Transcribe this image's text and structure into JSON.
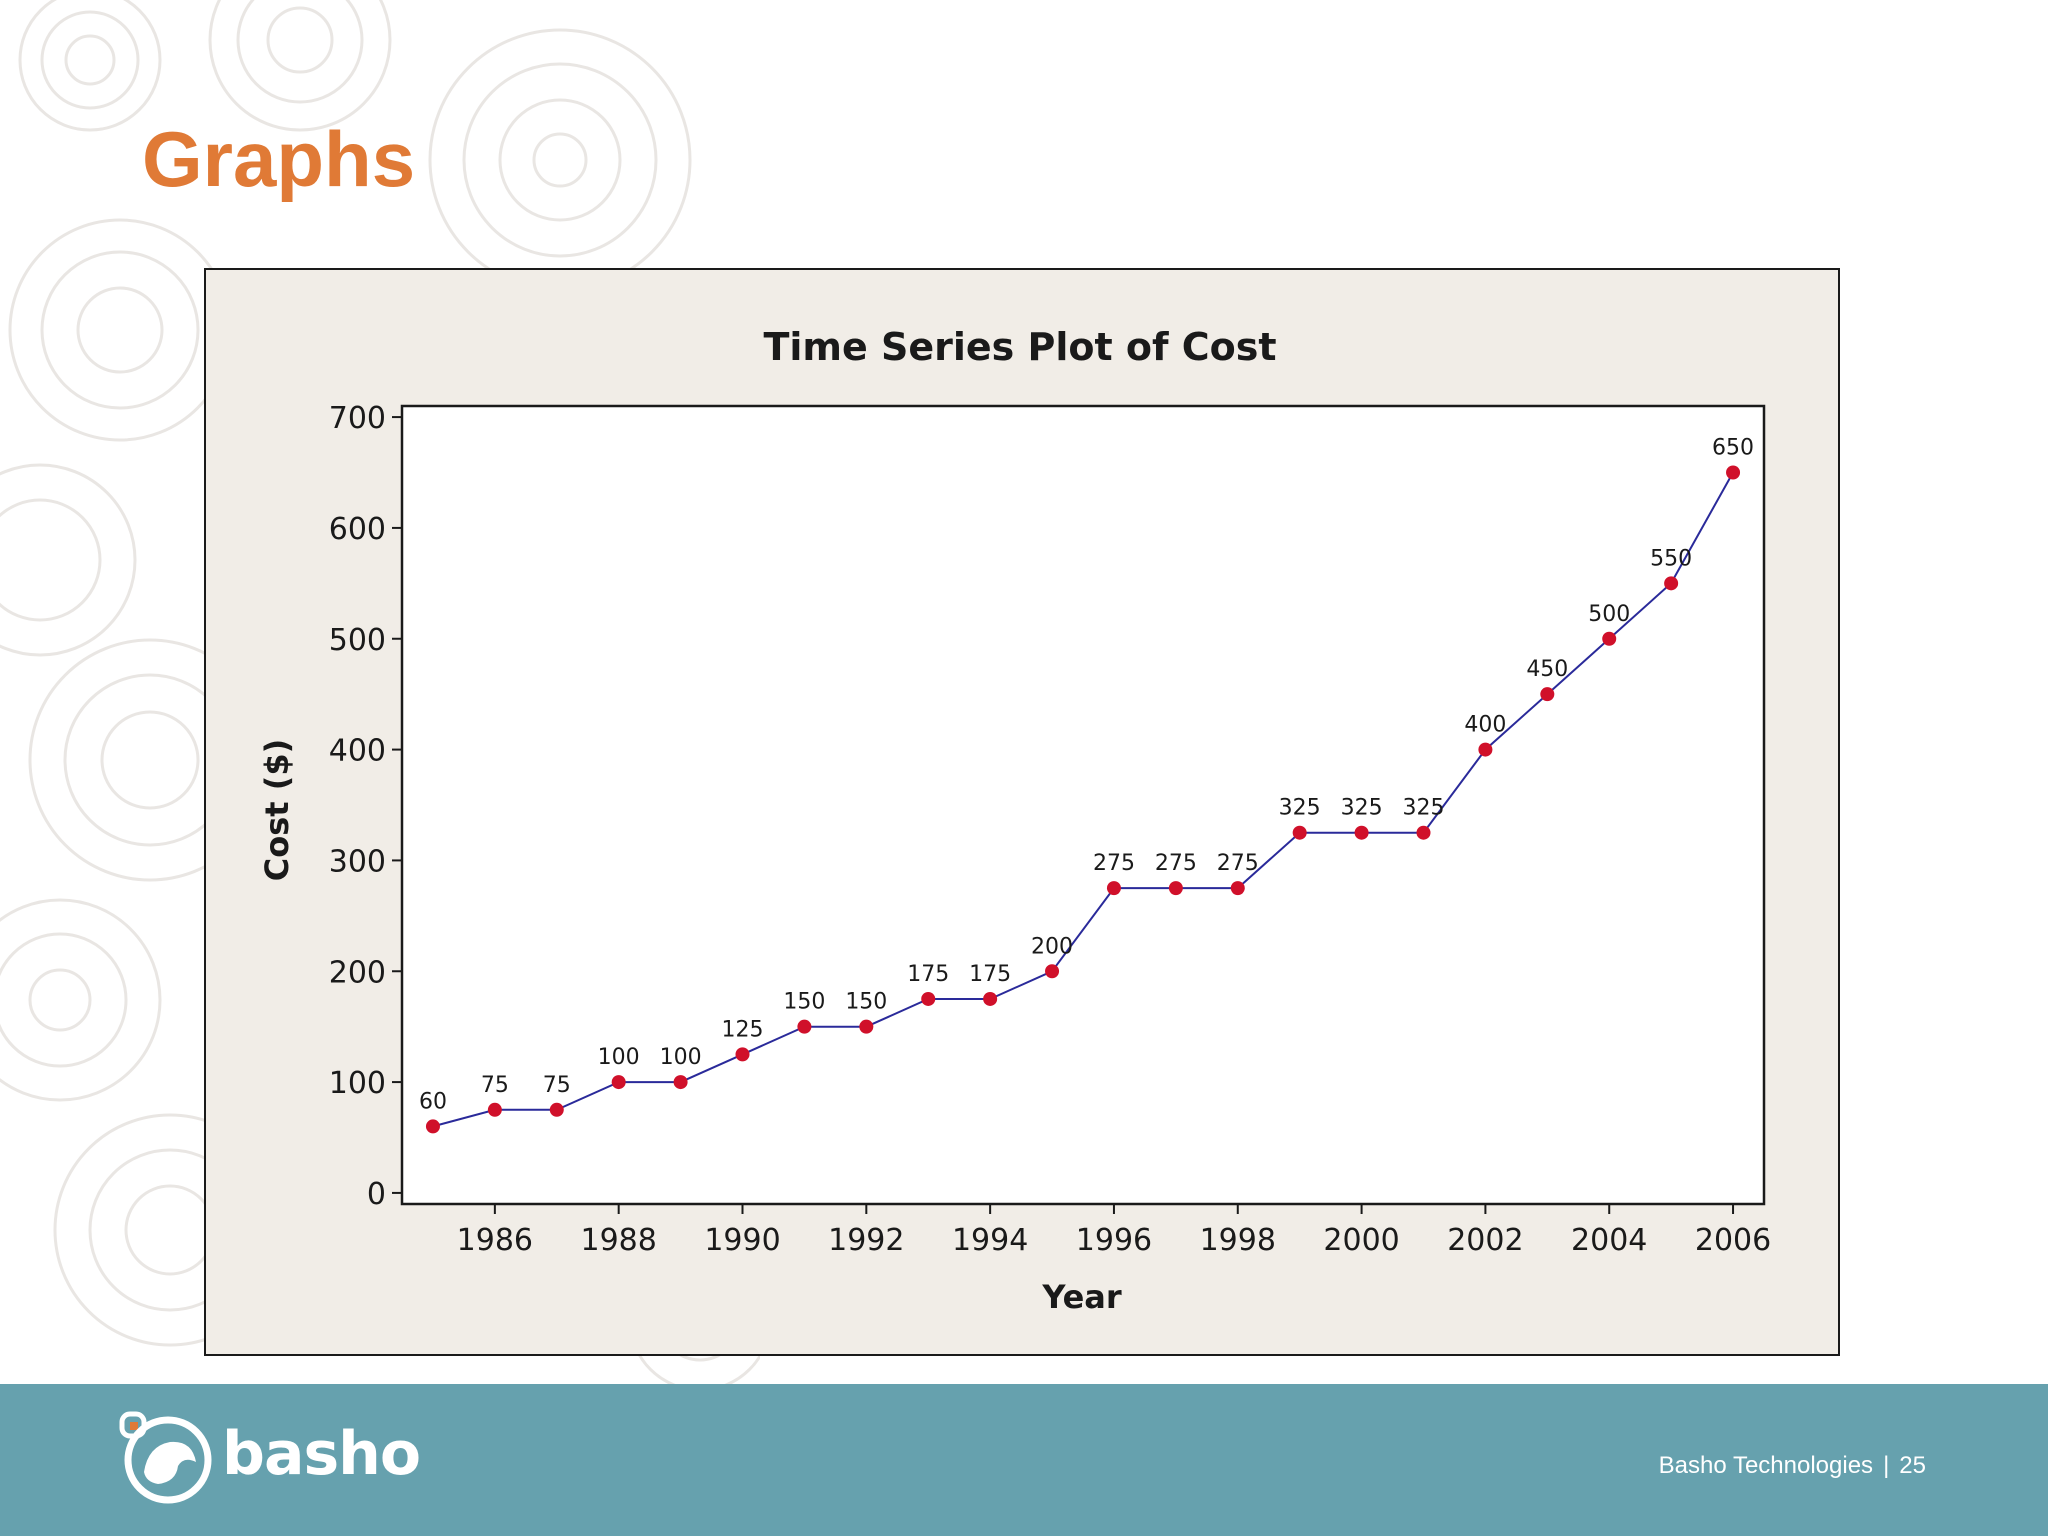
{
  "slide": {
    "title": "Graphs",
    "accent_color": "#e07a36"
  },
  "footer": {
    "logo_text": "basho",
    "company": "Basho Technologies",
    "separator": "|",
    "page_number": "25",
    "bar_color": "#66a1ae"
  },
  "chart_data": {
    "type": "line",
    "title": "Time Series Plot of Cost",
    "xlabel": "Year",
    "ylabel": "Cost ($)",
    "x": [
      1985,
      1986,
      1987,
      1988,
      1989,
      1990,
      1991,
      1992,
      1993,
      1994,
      1995,
      1996,
      1997,
      1998,
      1999,
      2000,
      2001,
      2002,
      2003,
      2004,
      2005,
      2006
    ],
    "values": [
      60,
      75,
      75,
      100,
      100,
      125,
      150,
      150,
      175,
      175,
      200,
      275,
      275,
      275,
      325,
      325,
      325,
      400,
      450,
      500,
      550,
      650
    ],
    "xticks": [
      1986,
      1988,
      1990,
      1992,
      1994,
      1996,
      1998,
      2000,
      2002,
      2004,
      2006
    ],
    "yticks": [
      0,
      100,
      200,
      300,
      400,
      500,
      600,
      700
    ],
    "xlim": [
      1984.5,
      2006.5
    ],
    "ylim": [
      -10,
      710
    ],
    "data_labels": true,
    "line_color": "#2a2a9a",
    "marker_color": "#d0102a",
    "panel_color": "#f1ede7",
    "grid": false,
    "legend": "none"
  }
}
